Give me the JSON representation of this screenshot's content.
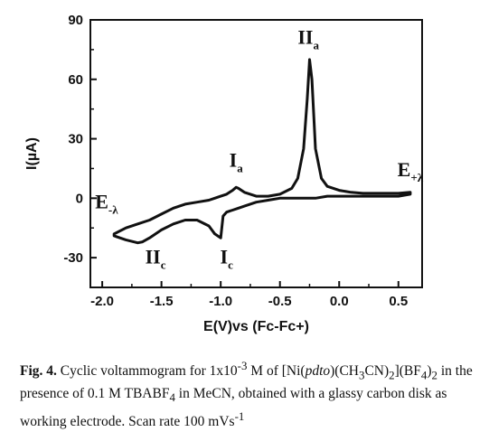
{
  "chart_data": {
    "type": "line",
    "xlabel": "E(V)vs (Fc-Fc+)",
    "ylabel": "I(µA)",
    "xlim": [
      -2.1,
      0.7
    ],
    "ylim": [
      -45,
      90
    ],
    "x_ticks": [
      -2.0,
      -1.5,
      -1.0,
      -0.5,
      0.0,
      0.5
    ],
    "x_tick_labels": [
      "-2.0",
      "-1.5",
      "-1.0",
      "-0.5",
      "0.0",
      "0.5"
    ],
    "y_ticks": [
      -30,
      0,
      30,
      60,
      90
    ],
    "y_tick_labels": [
      "-30",
      "0",
      "30",
      "60",
      "90"
    ],
    "grid": false,
    "series": [
      {
        "x": [
          -1.9,
          -1.8,
          -1.7,
          -1.6,
          -1.5,
          -1.4,
          -1.3,
          -1.2,
          -1.1,
          -1.05,
          -1.0,
          -0.95,
          -0.9,
          -0.87,
          -0.85,
          -0.8,
          -0.7,
          -0.6,
          -0.5,
          -0.4,
          -0.35,
          -0.3,
          -0.27,
          -0.25,
          -0.23,
          -0.2,
          -0.15,
          -0.1,
          0.0,
          0.1,
          0.2,
          0.3,
          0.4,
          0.5,
          0.6,
          0.6,
          0.5,
          0.4,
          0.3,
          0.2,
          0.1,
          0.0,
          -0.1,
          -0.2,
          -0.3,
          -0.4,
          -0.5,
          -0.6,
          -0.7,
          -0.8,
          -0.85,
          -0.9,
          -0.95,
          -0.98,
          -1.0,
          -1.05,
          -1.1,
          -1.2,
          -1.3,
          -1.4,
          -1.5,
          -1.6,
          -1.66,
          -1.7,
          -1.8,
          -1.9
        ],
        "y": [
          -18,
          -15,
          -13,
          -11,
          -8,
          -5,
          -3,
          -2,
          -1,
          0,
          1,
          2,
          4,
          5.5,
          5,
          3,
          1,
          1,
          2,
          5,
          10,
          25,
          50,
          70,
          60,
          25,
          10,
          6,
          4,
          3,
          2.5,
          2.5,
          2.5,
          2.5,
          3,
          2,
          1,
          1,
          1,
          1,
          1,
          1,
          1,
          0,
          0,
          0,
          0,
          -1,
          -2,
          -4,
          -5,
          -6,
          -7,
          -9,
          -20,
          -18,
          -14,
          -11,
          -11,
          -13,
          -16,
          -20,
          -22,
          -22.5,
          -21,
          -19
        ]
      }
    ],
    "annotations": [
      {
        "label": "E",
        "sub": "-λ"
      },
      {
        "label": "II",
        "sub": "c"
      },
      {
        "label": "I",
        "sub": "c"
      },
      {
        "label": "I",
        "sub": "a"
      },
      {
        "label": "II",
        "sub": "a"
      },
      {
        "label": "E",
        "sub": "+λ"
      }
    ]
  },
  "caption": {
    "fig_label": "Fig. 4.",
    "text_1": " Cyclic voltammogram for 1x10",
    "exp_conc": "-3",
    "text_2": " M of [Ni(",
    "ligand": "pdto",
    "text_3": ")(CH",
    "sub_3a": "3",
    "text_4": "CN)",
    "sub_2a": "2",
    "text_5": "](BF",
    "sub_4a": "4",
    "text_6": ")",
    "sub_2b": "2",
    "text_7": " in the presence of 0.1 M TBABF",
    "sub_4b": "4",
    "text_8": " in MeCN, obtained with a glassy carbon disk as working electrode. Scan rate 100 mVs",
    "exp_rate": "-1"
  }
}
